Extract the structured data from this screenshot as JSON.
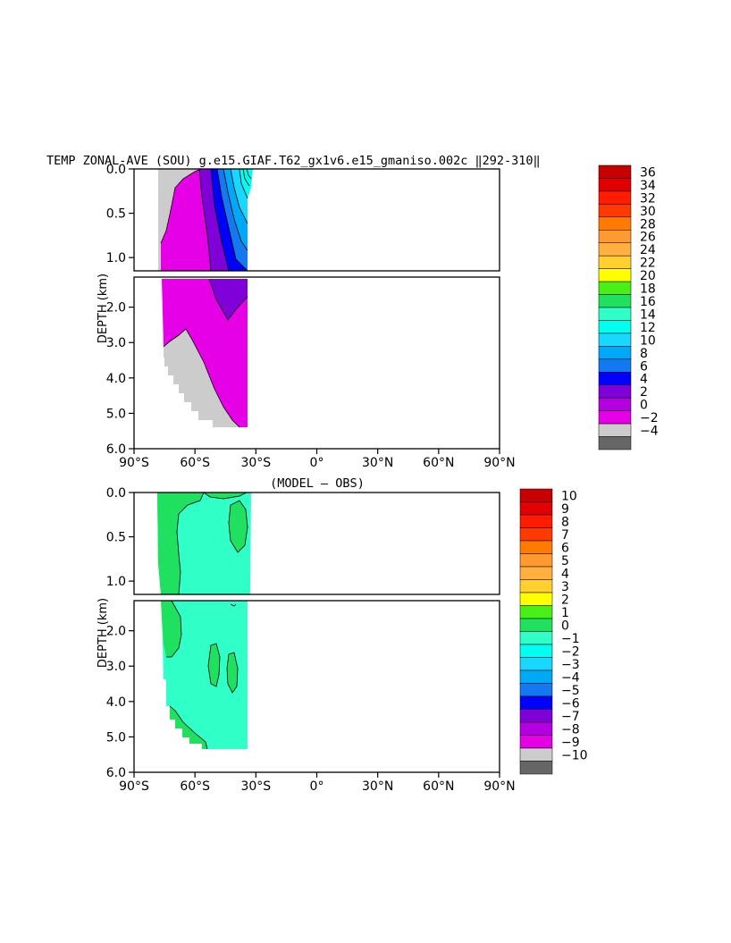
{
  "chart_data": [
    {
      "type": "area",
      "title": "TEMP ZONAL-AVE (SOU) g.e15.GIAF.T62_gx1v6.e15_gmaniso.002c ‖292-310‖",
      "ylabel": "DEPTH (km)",
      "xlabel": "",
      "x_ticks": [
        "90°S",
        "60°S",
        "30°S",
        "0°",
        "30°N",
        "60°N",
        "90°N"
      ],
      "x_values": [
        -90,
        -60,
        -30,
        0,
        30,
        60,
        90
      ],
      "y_ticks_upper": [
        "0.0",
        "0.5",
        "1.0"
      ],
      "y_ticks_lower": [
        "2.0",
        "3.0",
        "4.0",
        "5.0",
        "6.0"
      ],
      "ylim": [
        0,
        6
      ],
      "y_break_km": 1.15,
      "data_extent_lat": [
        -78,
        -34
      ],
      "colorbar": {
        "labels": [
          "36",
          "34",
          "32",
          "30",
          "28",
          "26",
          "24",
          "22",
          "20",
          "18",
          "16",
          "14",
          "12",
          "10",
          "8",
          "6",
          "4",
          "2",
          "0",
          "−2",
          "−4"
        ],
        "colors": [
          "#c80000",
          "#e00000",
          "#ff1c00",
          "#ff3a00",
          "#ff7a00",
          "#ff9a30",
          "#ffb040",
          "#ffd030",
          "#ffff00",
          "#48f018",
          "#20e060",
          "#30ffc8",
          "#00fff0",
          "#18d8ff",
          "#00a8f8",
          "#1478f0",
          "#0000ff",
          "#8000d8",
          "#b400e0",
          "#e600e6",
          "#cccccc",
          "#666666"
        ]
      },
      "region_colors": {
        "warm_4": "#0000ff",
        "band_6": "#1478f0",
        "band_8": "#00a8f8",
        "band_10": "#18d8ff",
        "band_12": "#00fff0",
        "purple_2": "#8000d8",
        "magenta_0": "#e600e6",
        "gray_neg": "#cccccc"
      }
    },
    {
      "type": "area",
      "title": "(MODEL – OBS)",
      "ylabel": "DEPTH (km)",
      "xlabel": "",
      "x_ticks": [
        "90°S",
        "60°S",
        "30°S",
        "0°",
        "30°N",
        "60°N",
        "90°N"
      ],
      "x_values": [
        -90,
        -60,
        -30,
        0,
        30,
        60,
        90
      ],
      "y_ticks_upper": [
        "0.0",
        "0.5",
        "1.0"
      ],
      "y_ticks_lower": [
        "2.0",
        "3.0",
        "4.0",
        "5.0",
        "6.0"
      ],
      "ylim": [
        0,
        6
      ],
      "y_break_km": 1.15,
      "data_extent_lat": [
        -78,
        -34
      ],
      "colorbar": {
        "labels": [
          "10",
          "9",
          "8",
          "7",
          "6",
          "5",
          "4",
          "3",
          "2",
          "1",
          "0",
          "−1",
          "−2",
          "−3",
          "−4",
          "−5",
          "−6",
          "−7",
          "−8",
          "−9",
          "−10"
        ],
        "colors": [
          "#c80000",
          "#e00000",
          "#ff1c00",
          "#ff3a00",
          "#ff7a00",
          "#ff9a30",
          "#ffb040",
          "#ffd030",
          "#ffff00",
          "#48f018",
          "#20e060",
          "#30ffc8",
          "#00fff0",
          "#18d8ff",
          "#00a8f8",
          "#1478f0",
          "#0000ff",
          "#8000d8",
          "#b400e0",
          "#e600e6",
          "#cccccc",
          "#666666"
        ]
      },
      "region_colors": {
        "base": "#30ffc8",
        "positive": "#20e060"
      }
    }
  ]
}
